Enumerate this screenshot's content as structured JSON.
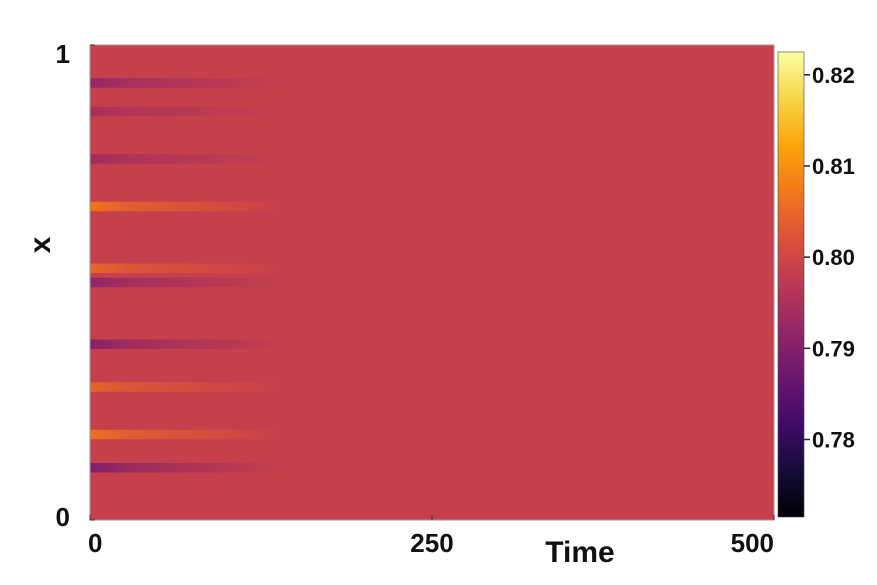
{
  "chart_data": {
    "type": "heatmap",
    "xlabel": "Time",
    "ylabel": "x",
    "xlim": [
      0,
      500
    ],
    "ylim": [
      0,
      1
    ],
    "x_ticks": [
      {
        "value": 0,
        "label": "0"
      },
      {
        "value": 250,
        "label": "250"
      },
      {
        "value": 500,
        "label": "500"
      }
    ],
    "y_ticks": [
      {
        "value": 0,
        "label": "0"
      },
      {
        "value": 1,
        "label": "1"
      }
    ],
    "colorbar": {
      "colormap": "inferno",
      "range": [
        0.7715,
        0.8225
      ],
      "ticks": [
        {
          "value": 0.78,
          "label": "0.78"
        },
        {
          "value": 0.79,
          "label": "0.79"
        },
        {
          "value": 0.8,
          "label": "0.80"
        },
        {
          "value": 0.81,
          "label": "0.81"
        },
        {
          "value": 0.82,
          "label": "0.82"
        }
      ]
    },
    "steady_state_value": 0.7985,
    "initial_bands": [
      {
        "x": 0.11,
        "value": 0.7895
      },
      {
        "x": 0.18,
        "value": 0.806
      },
      {
        "x": 0.28,
        "value": 0.8045
      },
      {
        "x": 0.37,
        "value": 0.7905
      },
      {
        "x": 0.5,
        "value": 0.7915
      },
      {
        "x": 0.53,
        "value": 0.8045
      },
      {
        "x": 0.66,
        "value": 0.8065
      },
      {
        "x": 0.76,
        "value": 0.7935
      },
      {
        "x": 0.86,
        "value": 0.7945
      },
      {
        "x": 0.92,
        "value": 0.792
      }
    ],
    "band_width": 0.02,
    "decay_time": 55
  }
}
